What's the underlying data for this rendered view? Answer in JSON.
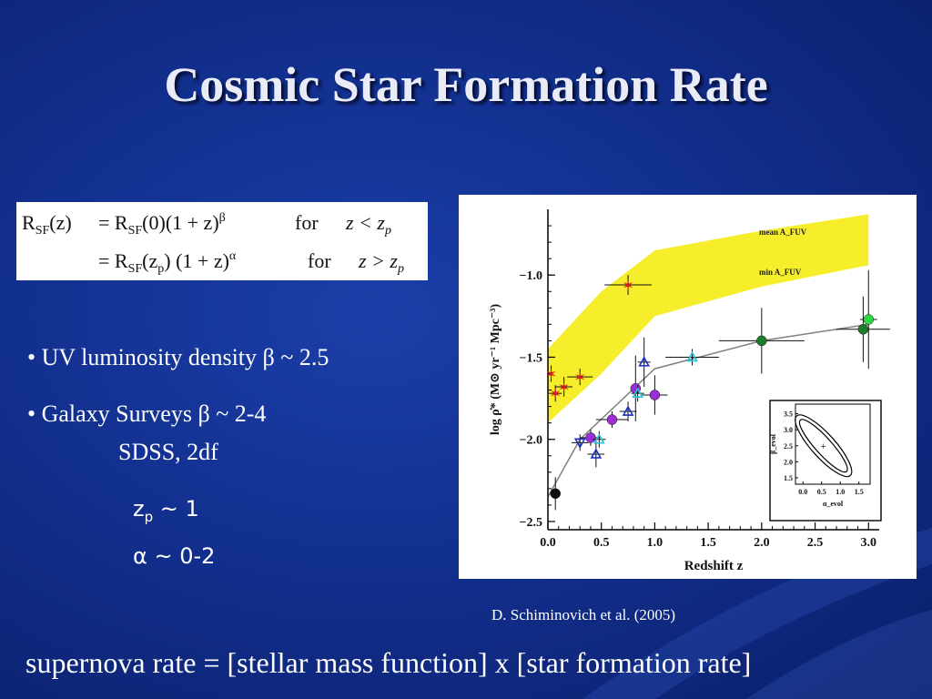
{
  "title": "Cosmic Star Formation Rate",
  "equation": {
    "line1": {
      "lhs": "R",
      "lhs_sub": "SF",
      "lhs_arg": "(z)",
      "rhs": "= R",
      "rhs_sub": "SF",
      "rhs_rest": "(0)(1 + z)",
      "exp": "β",
      "cond_word": "for",
      "cond": "z < z",
      "cond_sub": "p"
    },
    "line2": {
      "rhs": "= R",
      "rhs_sub": "SF",
      "rhs_arg": "(z",
      "rhs_arg_sub": "p",
      "rhs_rest": ") (1 + z)",
      "exp": "α",
      "cond_word": "for",
      "cond": "z > z",
      "cond_sub": "p"
    }
  },
  "bullets": [
    {
      "text": "• UV luminosity density  β ~ 2.5"
    },
    {
      "text": "• Galaxy Surveys    β ~ 2-4"
    },
    {
      "text": "SDSS, 2df"
    }
  ],
  "params": {
    "zp_main": "z",
    "zp_sub": "p",
    "zp_rest": " ~ 1",
    "alpha": "α ~ 0-2"
  },
  "caption": "D. Schiminovich et al. (2005)",
  "bottom_text": "supernova rate = [stellar mass function] x [star formation rate]",
  "colors": {
    "background": "#12308f",
    "band": "#f6ee2a",
    "line": "#808080"
  },
  "chart_data": {
    "type": "scatter",
    "xlabel": "Redshift z",
    "ylabel": "log ρ̇* (M⊙ yr⁻¹ Mpc⁻³)",
    "xlim": [
      0.0,
      3.1
    ],
    "ylim": [
      -2.55,
      -0.6
    ],
    "x_ticks": [
      "0.0",
      "0.5",
      "1.0",
      "1.5",
      "2.0",
      "2.5",
      "3.0"
    ],
    "y_ticks": [
      "-1.0",
      "-1.5",
      "-2.0",
      "-2.5"
    ],
    "band_labels": [
      "mean A_FUV",
      "min A_FUV"
    ],
    "band_upper": [
      [
        0.0,
        -1.45
      ],
      [
        0.5,
        -1.1
      ],
      [
        1.0,
        -0.85
      ],
      [
        2.0,
        -0.73
      ],
      [
        3.0,
        -0.63
      ]
    ],
    "band_lower": [
      [
        0.0,
        -1.9
      ],
      [
        0.5,
        -1.6
      ],
      [
        1.0,
        -1.25
      ],
      [
        2.0,
        -1.07
      ],
      [
        3.0,
        -0.94
      ]
    ],
    "trend_line": [
      [
        0.0,
        -2.35
      ],
      [
        0.3,
        -2.0
      ],
      [
        1.0,
        -1.57
      ],
      [
        2.0,
        -1.4
      ],
      [
        3.0,
        -1.3
      ]
    ],
    "series": [
      {
        "marker": "star",
        "color": "#d81e1e",
        "points": [
          {
            "x": 0.03,
            "y": -1.6,
            "err_y": 0.05
          },
          {
            "x": 0.07,
            "y": -1.72,
            "err_x": 0.06,
            "err_y": 0.05
          },
          {
            "x": 0.15,
            "y": -1.68,
            "err_x": 0.08,
            "err_y": 0.06
          },
          {
            "x": 0.3,
            "y": -1.62,
            "err_x": 0.12,
            "err_y": 0.05
          },
          {
            "x": 0.75,
            "y": -1.06,
            "err_x": 0.22,
            "err_y": 0.06
          }
        ]
      },
      {
        "marker": "circle",
        "color": "#9b2fd6",
        "points": [
          {
            "x": 0.4,
            "y": -1.99,
            "err_x": 0.1,
            "err_y": 0.05
          },
          {
            "x": 0.6,
            "y": -1.88,
            "err_x": 0.15,
            "err_y": 0.05
          },
          {
            "x": 0.82,
            "y": -1.69,
            "err_y": 0.2
          },
          {
            "x": 1.0,
            "y": -1.73,
            "err_x": 0.12,
            "err_y": 0.12
          }
        ]
      },
      {
        "marker": "triangle-up",
        "color": "#1b2fc4",
        "points": [
          {
            "x": 0.45,
            "y": -2.09,
            "err_x": 0.08,
            "err_y": 0.08
          },
          {
            "x": 0.75,
            "y": -1.83,
            "err_x": 0.08,
            "err_y": 0.06
          },
          {
            "x": 0.9,
            "y": -1.53,
            "err_x": 0.06,
            "err_y": 0.15
          }
        ]
      },
      {
        "marker": "triangle-down",
        "color": "#1b2fc4",
        "points": [
          {
            "x": 0.3,
            "y": -2.02,
            "err_x": 0.08,
            "err_y": 0.05
          }
        ]
      },
      {
        "marker": "triangle-up",
        "color": "#27c3d8",
        "points": [
          {
            "x": 0.48,
            "y": -2.0,
            "err_x": 0.06,
            "err_y": 0.05
          },
          {
            "x": 0.84,
            "y": -1.72,
            "err_x": 0.06,
            "err_y": 0.05
          },
          {
            "x": 1.35,
            "y": -1.5,
            "err_x": 0.25,
            "err_y": 0.05
          }
        ]
      },
      {
        "marker": "circle",
        "color": "#0e0e0e",
        "points": [
          {
            "x": 0.07,
            "y": -2.33,
            "err_y": 0.1
          }
        ]
      },
      {
        "marker": "circle",
        "color": "#1f7a2a",
        "points": [
          {
            "x": 2.0,
            "y": -1.4,
            "err_x": 0.4,
            "err_y": 0.2
          },
          {
            "x": 2.95,
            "y": -1.33,
            "err_x": 0.25,
            "err_y": 0.2
          }
        ]
      },
      {
        "marker": "circle",
        "color": "#2fd646",
        "points": [
          {
            "x": 3.0,
            "y": -1.27,
            "err_x": 0.08,
            "err_y": 0.3
          }
        ]
      }
    ],
    "inset": {
      "x_ticks": [
        "0.0",
        "0.5",
        "1.0",
        "1.5"
      ],
      "y_ticks": [
        "3.5",
        "3.0",
        "2.5",
        "2.0",
        "1.5"
      ],
      "xlabel": "α_evol",
      "ylabel": "β_evol",
      "xlim": [
        -0.2,
        1.8
      ],
      "ylim": [
        1.3,
        3.8
      ],
      "best_fit": [
        0.55,
        2.5
      ]
    }
  }
}
